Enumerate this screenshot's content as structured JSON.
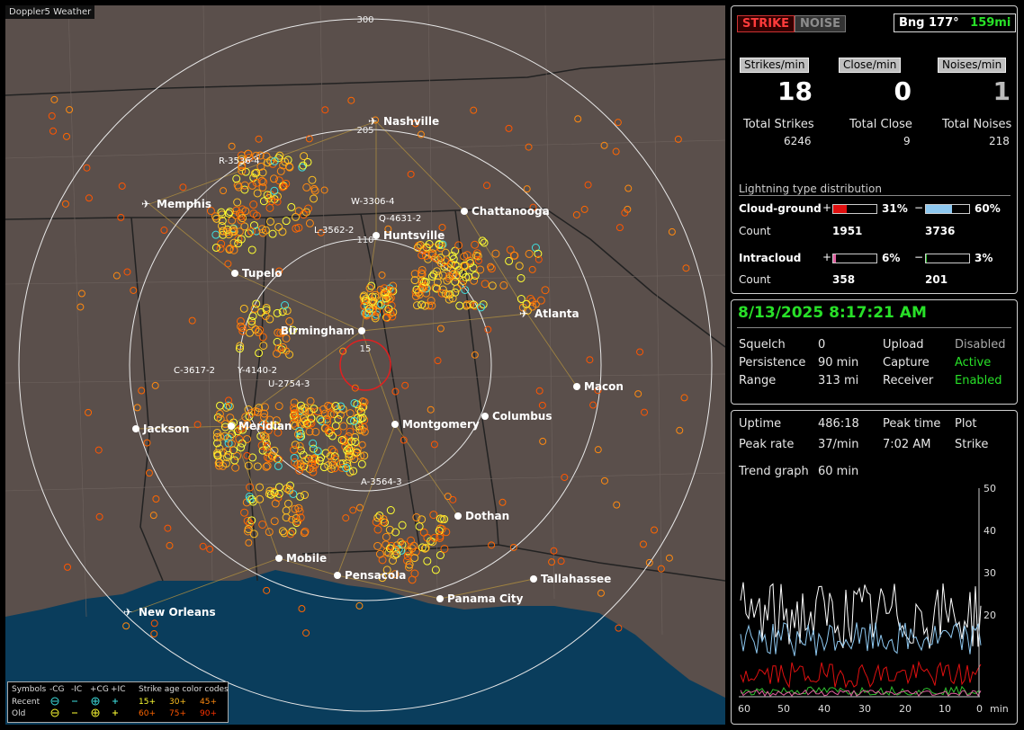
{
  "app_title": "Doppler5 Weather",
  "buttons": {
    "strike": "STRIKE",
    "noise": "NOISE"
  },
  "bearing": {
    "label": "Bng 177°",
    "distance": "159mi"
  },
  "rates": [
    {
      "label": "Strikes/min",
      "value": "18"
    },
    {
      "label": "Close/min",
      "value": "0"
    },
    {
      "label": "Noises/min",
      "value": "1"
    }
  ],
  "totals": [
    {
      "label": "Total Strikes",
      "value": "6246"
    },
    {
      "label": "Total Close",
      "value": "9"
    },
    {
      "label": "Total Noises",
      "value": "218"
    }
  ],
  "distribution": {
    "title": "Lightning type distribution",
    "cloud_ground": {
      "label": "Cloud-ground",
      "plus_pct": "31%",
      "minus_pct": "60%",
      "plus_fraction": 0.31,
      "minus_fraction": 0.6
    },
    "cg_count": {
      "label": "Count",
      "plus": "1951",
      "minus": "3736"
    },
    "intracloud": {
      "label": "Intracloud",
      "plus_pct": "6%",
      "minus_pct": "3%",
      "plus_fraction": 0.06,
      "minus_fraction": 0.03
    },
    "ic_count": {
      "label": "Count",
      "plus": "358",
      "minus": "201"
    },
    "plus_sign": "+",
    "minus_sign": "−"
  },
  "datetime": "8/13/2025 8:17:21 AM",
  "status": {
    "squelch": {
      "label": "Squelch",
      "value": "0"
    },
    "persistence": {
      "label": "Persistence",
      "value": "90 min"
    },
    "range": {
      "label": "Range",
      "value": "313 mi"
    },
    "upload": {
      "label": "Upload",
      "value": "Disabled"
    },
    "capture": {
      "label": "Capture",
      "value": "Active"
    },
    "receiver": {
      "label": "Receiver",
      "value": "Enabled"
    }
  },
  "stats": {
    "uptime": {
      "label": "Uptime",
      "value": "486:18"
    },
    "peak_time": {
      "label": "Peak time",
      "value": "7:02 AM"
    },
    "plot": {
      "label": "Plot",
      "value": "Strike"
    },
    "peak_rate": {
      "label": "Peak rate",
      "value": "37/min"
    },
    "trend": {
      "label": "Trend graph",
      "value": "60 min"
    }
  },
  "trend_graph": {
    "y_ticks": [
      "50",
      "40",
      "30",
      "20"
    ],
    "x_ticks": [
      "60",
      "50",
      "40",
      "30",
      "20",
      "10",
      "0"
    ],
    "x_unit": "min",
    "ylim": [
      0,
      50
    ]
  },
  "map": {
    "range_labels": [
      "300",
      "205",
      "110",
      "15"
    ],
    "cities": [
      {
        "name": "Nashville",
        "x": 412,
        "y": 129,
        "airport": true
      },
      {
        "name": "Memphis",
        "x": 160,
        "y": 221,
        "airport": true
      },
      {
        "name": "Chattanooga",
        "x": 510,
        "y": 229,
        "airport": false
      },
      {
        "name": "Huntsville",
        "x": 412,
        "y": 256,
        "airport": false
      },
      {
        "name": "Tupelo",
        "x": 255,
        "y": 298,
        "airport": false
      },
      {
        "name": "Atlanta",
        "x": 580,
        "y": 343,
        "airport": true
      },
      {
        "name": "Birmingham",
        "x": 396,
        "y": 362,
        "airport": false,
        "left": true
      },
      {
        "name": "Macon",
        "x": 635,
        "y": 424,
        "airport": false
      },
      {
        "name": "Jackson",
        "x": 145,
        "y": 471,
        "airport": false
      },
      {
        "name": "Meridian",
        "x": 251,
        "y": 468,
        "airport": false
      },
      {
        "name": "Montgomery",
        "x": 433,
        "y": 466,
        "airport": false
      },
      {
        "name": "Columbus",
        "x": 533,
        "y": 457,
        "airport": false
      },
      {
        "name": "Dothan",
        "x": 503,
        "y": 568,
        "airport": false
      },
      {
        "name": "Mobile",
        "x": 304,
        "y": 615,
        "airport": false
      },
      {
        "name": "Pensacola",
        "x": 369,
        "y": 634,
        "airport": false
      },
      {
        "name": "Tallahassee",
        "x": 587,
        "y": 638,
        "airport": false
      },
      {
        "name": "Panama City",
        "x": 483,
        "y": 660,
        "airport": false
      },
      {
        "name": "New Orleans",
        "x": 140,
        "y": 675,
        "airport": true
      }
    ],
    "cell_labels": [
      {
        "text": "R-3536-4",
        "x": 237,
        "y": 176
      },
      {
        "text": "W-3306-4",
        "x": 384,
        "y": 221
      },
      {
        "text": "Q-4631-2",
        "x": 415,
        "y": 240
      },
      {
        "text": "L-3562-2",
        "x": 343,
        "y": 253
      },
      {
        "text": "C-3617-2",
        "x": 187,
        "y": 409
      },
      {
        "text": "Y-4140-2",
        "x": 258,
        "y": 409
      },
      {
        "text": "U-2754-3",
        "x": 292,
        "y": 424
      },
      {
        "text": "A-3564-3",
        "x": 395,
        "y": 533
      }
    ]
  },
  "legend": {
    "symbols": "Symbols",
    "cols": [
      "-CG",
      "-IC",
      "+CG",
      "+IC"
    ],
    "age_title": "Strike age color codes",
    "recent": "Recent",
    "old": "Old",
    "recent_ages": [
      "15+",
      "30+",
      "45+"
    ],
    "old_ages": [
      "60+",
      "75+",
      "90+"
    ],
    "colors": [
      "#ffff33",
      "#ffc020",
      "#ff8a10",
      "#ff6600",
      "#ff5500",
      "#ff3300"
    ]
  }
}
